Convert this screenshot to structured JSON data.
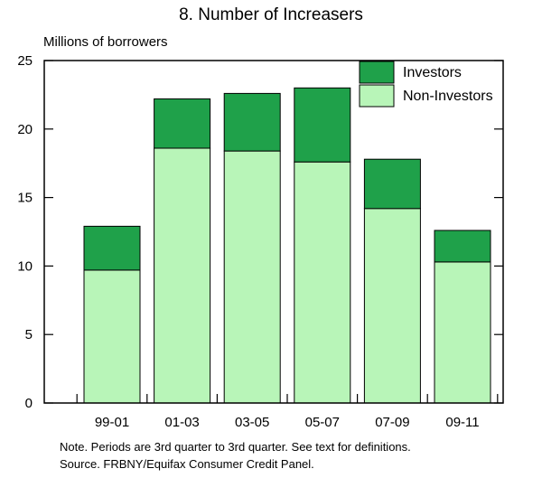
{
  "chart_data": {
    "type": "bar",
    "stacked": true,
    "title": "8. Number of Increasers",
    "ylabel": "Millions of borrowers",
    "categories": [
      "99-01",
      "01-03",
      "03-05",
      "05-07",
      "07-09",
      "09-11"
    ],
    "series": [
      {
        "name": "Non-Investors",
        "color": "#b8f5b8",
        "values": [
          9.7,
          18.6,
          18.4,
          17.6,
          14.2,
          10.3
        ]
      },
      {
        "name": "Investors",
        "color": "#1fa14a",
        "values": [
          3.2,
          3.6,
          4.2,
          5.4,
          3.6,
          2.3
        ]
      }
    ],
    "ylim": [
      0,
      25
    ],
    "yticks": [
      0,
      5,
      10,
      15,
      20,
      25
    ],
    "legend_position": "top-right",
    "grid": false
  },
  "notes": {
    "line1": "Note. Periods are 3rd quarter to 3rd quarter.  See text for definitions.",
    "line2": "Source. FRBNY/Equifax Consumer Credit Panel."
  }
}
